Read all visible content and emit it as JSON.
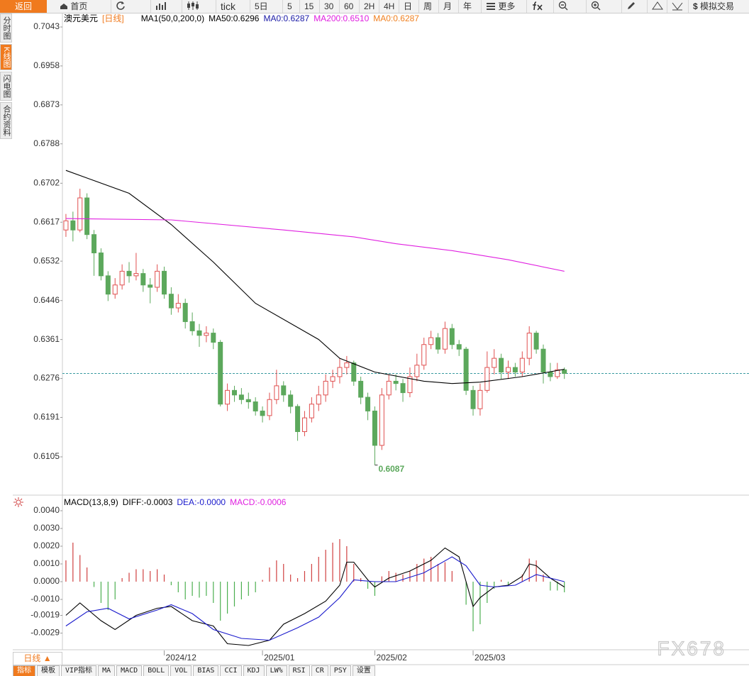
{
  "toolbar": [
    "返回",
    "首页",
    "tick",
    "5日",
    "5",
    "15",
    "30",
    "60",
    "2H",
    "4H",
    "日",
    "周",
    "月",
    "年",
    "更多",
    "模拟交易"
  ],
  "sidebar": [
    "分时图",
    "K线图",
    "闪电图",
    "合约资料"
  ],
  "period_label": "日线 ▲",
  "tabs": [
    "指标",
    "模板",
    "VIP指标",
    "MA",
    "MACD",
    "BOLL",
    "VOL",
    "BIAS",
    "CCI",
    "KDJ",
    "LW%",
    "RSI",
    "CR",
    "PSY",
    "设置"
  ],
  "watermark": "FX678",
  "chart_data": [
    {
      "type": "candlestick",
      "title": "澳元美元",
      "period": "[日线]",
      "indicator": "MA1(50,0,200,0)",
      "up_color": "#e05050",
      "down_color": "#5ca85c",
      "xlim": [
        -0.5,
        97.3
      ],
      "ylim": [
        0.6023,
        0.7074
      ],
      "yticks": [
        0.7043,
        0.6958,
        0.6873,
        0.6788,
        0.6702,
        0.6617,
        0.6532,
        0.6446,
        0.6361,
        0.6276,
        0.6191,
        0.6105
      ],
      "open": [
        0.66,
        0.662,
        0.66,
        0.667,
        0.659,
        0.655,
        0.65,
        0.646,
        0.648,
        0.651,
        0.65,
        0.6505,
        0.648,
        0.6475,
        0.651,
        0.646,
        0.643,
        0.644,
        0.64,
        0.638,
        0.637,
        0.6375,
        0.6355,
        0.622,
        0.625,
        0.624,
        0.623,
        0.6225,
        0.6205,
        0.6195,
        0.623,
        0.626,
        0.624,
        0.6215,
        0.616,
        0.619,
        0.622,
        0.624,
        0.627,
        0.628,
        0.63,
        0.631,
        0.627,
        0.6235,
        0.6205,
        0.613,
        0.624,
        0.627,
        0.6265,
        0.6245,
        0.628,
        0.6305,
        0.635,
        0.6365,
        0.634,
        0.6385,
        0.635,
        0.634,
        0.625,
        0.621,
        0.625,
        0.63,
        0.632,
        0.629,
        0.63,
        0.629,
        0.632,
        0.6375,
        0.634,
        0.629,
        0.628,
        0.6295
      ],
      "high": [
        0.6635,
        0.664,
        0.669,
        0.668,
        0.66,
        0.656,
        0.651,
        0.6495,
        0.6525,
        0.653,
        0.655,
        0.6515,
        0.6495,
        0.6525,
        0.652,
        0.6475,
        0.646,
        0.645,
        0.642,
        0.6395,
        0.639,
        0.6385,
        0.636,
        0.6265,
        0.626,
        0.6255,
        0.6245,
        0.6235,
        0.6215,
        0.6245,
        0.6295,
        0.627,
        0.625,
        0.622,
        0.6205,
        0.6235,
        0.626,
        0.6285,
        0.6295,
        0.632,
        0.6325,
        0.6315,
        0.628,
        0.6245,
        0.6215,
        0.6255,
        0.6285,
        0.6285,
        0.6275,
        0.63,
        0.633,
        0.6365,
        0.638,
        0.6375,
        0.64,
        0.6395,
        0.636,
        0.6345,
        0.626,
        0.6265,
        0.6335,
        0.634,
        0.633,
        0.6315,
        0.631,
        0.6335,
        0.639,
        0.638,
        0.635,
        0.631,
        0.631,
        0.63
      ],
      "low": [
        0.6585,
        0.6575,
        0.6595,
        0.658,
        0.65,
        0.649,
        0.6445,
        0.645,
        0.647,
        0.6485,
        0.649,
        0.6465,
        0.644,
        0.6465,
        0.645,
        0.6415,
        0.642,
        0.6385,
        0.637,
        0.6345,
        0.6355,
        0.634,
        0.6215,
        0.6205,
        0.6225,
        0.622,
        0.621,
        0.6195,
        0.618,
        0.6185,
        0.622,
        0.6225,
        0.62,
        0.614,
        0.615,
        0.618,
        0.6205,
        0.6225,
        0.6255,
        0.6265,
        0.6285,
        0.626,
        0.622,
        0.6185,
        0.6087,
        0.612,
        0.623,
        0.625,
        0.6225,
        0.6235,
        0.627,
        0.6295,
        0.634,
        0.633,
        0.633,
        0.634,
        0.6325,
        0.624,
        0.6195,
        0.6195,
        0.6245,
        0.6285,
        0.6275,
        0.6275,
        0.628,
        0.628,
        0.6305,
        0.633,
        0.6265,
        0.627,
        0.6275,
        0.6275
      ],
      "close": [
        0.662,
        0.66,
        0.667,
        0.659,
        0.655,
        0.65,
        0.646,
        0.648,
        0.651,
        0.65,
        0.6505,
        0.648,
        0.6475,
        0.651,
        0.646,
        0.643,
        0.644,
        0.64,
        0.638,
        0.637,
        0.6375,
        0.6355,
        0.622,
        0.625,
        0.624,
        0.623,
        0.6225,
        0.6205,
        0.6195,
        0.623,
        0.626,
        0.624,
        0.6215,
        0.616,
        0.619,
        0.622,
        0.624,
        0.627,
        0.628,
        0.63,
        0.631,
        0.627,
        0.6235,
        0.6205,
        0.613,
        0.624,
        0.627,
        0.6265,
        0.6245,
        0.628,
        0.6305,
        0.635,
        0.6365,
        0.634,
        0.6385,
        0.635,
        0.634,
        0.625,
        0.621,
        0.625,
        0.63,
        0.632,
        0.629,
        0.63,
        0.629,
        0.632,
        0.6375,
        0.634,
        0.629,
        0.628,
        0.6295,
        0.6287
      ],
      "series": [
        {
          "name": "MA50:0.6296",
          "color": "#000000",
          "x": [
            0,
            9,
            15,
            21,
            27,
            36,
            39,
            44,
            51,
            55,
            59,
            65,
            71
          ],
          "values": [
            0.673,
            0.668,
            0.6612,
            0.653,
            0.644,
            0.6361,
            0.632,
            0.629,
            0.627,
            0.6265,
            0.6268,
            0.628,
            0.6296
          ]
        },
        {
          "name": "MA0:0.6287",
          "color": "#1a1aa6"
        },
        {
          "name": "MA200:0.6510",
          "color": "#e020e0",
          "x": [
            0,
            15,
            31,
            41,
            47,
            55,
            63,
            71
          ],
          "values": [
            0.6625,
            0.6622,
            0.66,
            0.6585,
            0.657,
            0.6555,
            0.6535,
            0.651
          ]
        },
        {
          "name": "MA0:0.6287",
          "color": "#f08020"
        }
      ],
      "last_price": 0.6287,
      "last_color": "#3a9aa0",
      "annotation": {
        "x": 44,
        "value": 0.6087
      }
    },
    {
      "type": "macd",
      "title": "MACD(13,8,9)",
      "xlim": [
        -0.5,
        97.3
      ],
      "ylim": [
        -0.0038,
        0.0048
      ],
      "yticks": [
        {
          "value": 0.004,
          "label": "0.0040"
        },
        {
          "value": 0.003,
          "label": "0.0030"
        },
        {
          "value": 0.002,
          "label": "0.0020"
        },
        {
          "value": 0.001,
          "label": "0.0010"
        },
        {
          "value": 0,
          "label": "0.0000"
        },
        {
          "value": -0.001,
          "label": "-0.0010"
        },
        {
          "value": -0.0019,
          "label": "-0.0019"
        },
        {
          "value": -0.0029,
          "label": "-0.0029"
        }
      ],
      "xticks": [
        {
          "value": 14,
          "label": "2024/12"
        },
        {
          "value": 28,
          "label": "2025/01"
        },
        {
          "value": 44,
          "label": "2025/02"
        },
        {
          "value": 58,
          "label": "2025/03"
        }
      ],
      "series": [
        {
          "name": "DIFF:-0.0003",
          "color": "#000000",
          "x": [
            0,
            2,
            5,
            7,
            10,
            13,
            15,
            18,
            21,
            23,
            26,
            29,
            31,
            34,
            37,
            39,
            40,
            41,
            43,
            44,
            46,
            49,
            52,
            54,
            56,
            57,
            58,
            59,
            61,
            63,
            65,
            66,
            67,
            69,
            71
          ],
          "values": [
            -0.0019,
            -0.0012,
            -0.0022,
            -0.0027,
            -0.0019,
            -0.0015,
            -0.0014,
            -0.0022,
            -0.0025,
            -0.0035,
            -0.0036,
            -0.0033,
            -0.0024,
            -0.0018,
            -0.0011,
            -0.0002,
            0.0011,
            0.0011,
            0.0001,
            -0.0003,
            0.0002,
            0.0006,
            0.0012,
            0.0019,
            0.0014,
            0,
            -0.0014,
            -0.0009,
            -0.0003,
            -0.0002,
            0.0003,
            0.001,
            0.0009,
            0.0002,
            -0.0003
          ]
        },
        {
          "name": "DEA:-0.0000",
          "color": "#1a1acc",
          "x": [
            0,
            3,
            6,
            9,
            13,
            15,
            18,
            21,
            25,
            29,
            33,
            36,
            39,
            41,
            44,
            47,
            51,
            55,
            57,
            59,
            61,
            64,
            67,
            71
          ],
          "values": [
            -0.0025,
            -0.0017,
            -0.0015,
            -0.0021,
            -0.0016,
            -0.0013,
            -0.0018,
            -0.0027,
            -0.0032,
            -0.0033,
            -0.0026,
            -0.002,
            -0.0009,
            0.0001,
            0,
            0,
            0.0005,
            0.0014,
            0.0009,
            -0.0002,
            -0.0003,
            -0.0002,
            0.0004,
            0
          ]
        },
        {
          "name": "MACD:-0.0006",
          "color": "#e020e0",
          "style": "bar",
          "up_color": "#d04040",
          "down_color": "#4caf50",
          "values": [
            0.0012,
            0.0022,
            0.0015,
            0.0008,
            -0.0003,
            -0.0012,
            -0.0016,
            -0.001,
            0.0002,
            0.0005,
            0.0007,
            0.0007,
            0.0006,
            0.0007,
            0.0004,
            -0.0002,
            -0.0006,
            -0.001,
            -0.0008,
            -0.0009,
            -0.0008,
            -0.0012,
            -0.0022,
            -0.0018,
            -0.0014,
            -0.001,
            -0.0008,
            -0.0006,
            0.0001,
            0.0008,
            0.0012,
            0.001,
            0.0004,
            0.0002,
            0.0006,
            0.001,
            0.0014,
            0.0018,
            0.0022,
            0.0024,
            0.002,
            0.001,
            0.0002,
            -0.0004,
            -0.0008,
            0.0003,
            0.0006,
            0.0005,
            0.0004,
            0.0006,
            0.001,
            0.0013,
            0.0014,
            0.001,
            0.0011,
            0.0006,
            0,
            -0.0013,
            -0.0028,
            -0.0024,
            -0.0012,
            -0.0004,
            0.0001,
            -0.0002,
            0,
            0.0004,
            0.0013,
            0.0012,
            0.0004,
            -0.0005,
            -0.0005,
            -0.0006
          ]
        }
      ]
    }
  ]
}
